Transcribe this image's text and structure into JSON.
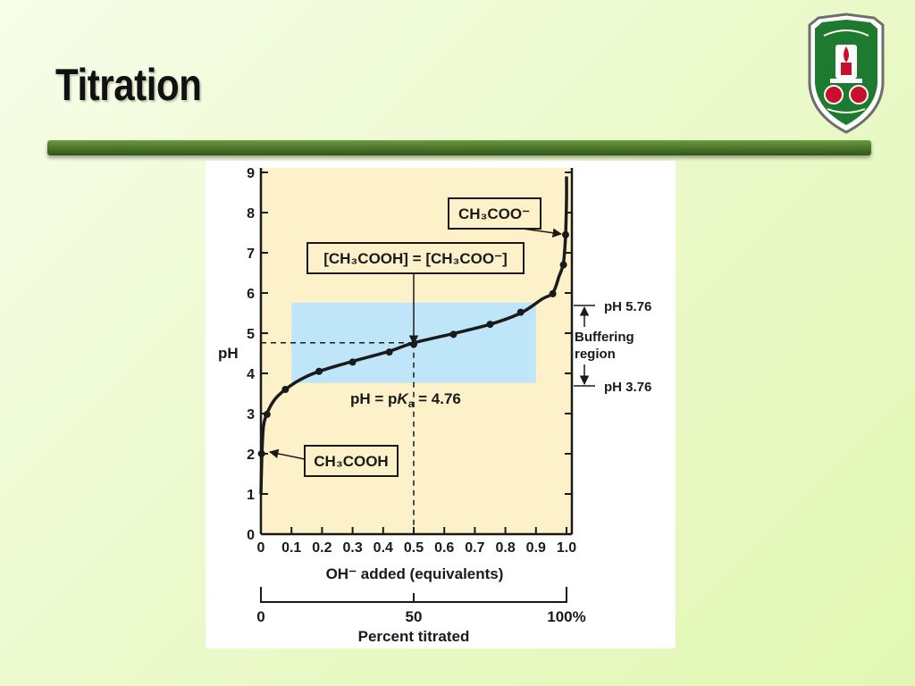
{
  "slide": {
    "title": "Titration"
  },
  "colors": {
    "plot_background": "#fdf1c9",
    "buffer_region": "#bfe6f8",
    "curve": "#1a1a1a",
    "divider": "#4f7a2c",
    "logo_green": "#1e7a2f",
    "logo_red": "#c8102e"
  },
  "logo": {
    "icon": "university-crest-icon"
  },
  "chart_data": {
    "type": "line",
    "xlabel": "OH⁻ added (equivalents)",
    "ylabel": "pH",
    "xlim": [
      0,
      1
    ],
    "ylim": [
      0,
      9
    ],
    "x_ticks": [
      "0",
      "0.1",
      "0.2",
      "0.3",
      "0.4",
      "0.5",
      "0.6",
      "0.7",
      "0.8",
      "0.9",
      "1.0"
    ],
    "y_ticks": [
      "0",
      "1",
      "2",
      "3",
      "4",
      "5",
      "6",
      "7",
      "8",
      "9"
    ],
    "curve": [
      [
        0.0,
        1.0
      ],
      [
        0.003,
        1.9
      ],
      [
        0.008,
        2.65
      ],
      [
        0.02,
        3.0
      ],
      [
        0.045,
        3.35
      ],
      [
        0.08,
        3.6
      ],
      [
        0.13,
        3.85
      ],
      [
        0.19,
        4.05
      ],
      [
        0.3,
        4.3
      ],
      [
        0.42,
        4.55
      ],
      [
        0.5,
        4.76
      ],
      [
        0.63,
        4.99
      ],
      [
        0.75,
        5.22
      ],
      [
        0.85,
        5.5
      ],
      [
        0.92,
        5.85
      ],
      [
        0.955,
        6.0
      ],
      [
        0.975,
        6.4
      ],
      [
        0.99,
        6.75
      ],
      [
        0.997,
        7.45
      ],
      [
        1.0,
        8.3
      ],
      [
        1.0,
        8.9
      ]
    ],
    "points": [
      {
        "x": 0.002,
        "y": 2.0
      },
      {
        "x": 0.02,
        "y": 2.98
      },
      {
        "x": 0.08,
        "y": 3.6
      },
      {
        "x": 0.19,
        "y": 4.05
      },
      {
        "x": 0.3,
        "y": 4.28
      },
      {
        "x": 0.42,
        "y": 4.53
      },
      {
        "x": 0.5,
        "y": 4.72
      },
      {
        "x": 0.63,
        "y": 4.97
      },
      {
        "x": 0.75,
        "y": 5.22
      },
      {
        "x": 0.85,
        "y": 5.52
      },
      {
        "x": 0.955,
        "y": 5.98
      },
      {
        "x": 0.99,
        "y": 6.7
      },
      {
        "x": 0.997,
        "y": 7.45
      }
    ],
    "buffer_region": {
      "x": [
        0.1,
        0.9
      ],
      "y": [
        3.76,
        5.76
      ]
    },
    "pka": {
      "x": 0.5,
      "y": 4.76
    },
    "annotations": {
      "ch3coo": "CH₃COO⁻",
      "equal": "[CH₃COOH] = [CH₃COO⁻]",
      "ch3cooh": "CH₃COOH",
      "pka_prefix": "pH = p",
      "pka_k": "K",
      "pka_sub": "a",
      "pka_value": " = 4.76",
      "ph_high": "pH 5.76",
      "ph_low": "pH 3.76",
      "buffering_line1": "Buffering",
      "buffering_line2": "region"
    },
    "percent_axis": {
      "label": "Percent titrated",
      "ticks": [
        "0",
        "50",
        "100%"
      ]
    },
    "grid": false
  }
}
